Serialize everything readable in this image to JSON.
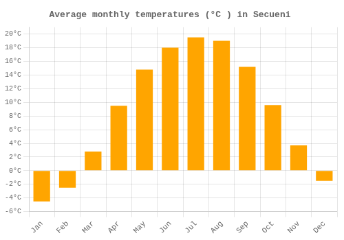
{
  "chart_data": {
    "type": "bar",
    "title": "Average monthly temperatures (°C ) in Secueni",
    "categories": [
      "Jan",
      "Feb",
      "Mar",
      "Apr",
      "May",
      "Jun",
      "Jul",
      "Aug",
      "Sep",
      "Oct",
      "Nov",
      "Dec"
    ],
    "values": [
      -4.5,
      -2.5,
      2.8,
      9.5,
      14.8,
      18.0,
      19.5,
      19.0,
      15.2,
      9.6,
      3.7,
      -1.5
    ],
    "color": "#FFA500",
    "ylim": [
      -6,
      21
    ],
    "yticks": [
      {
        "value": -6,
        "label": "-6°C"
      },
      {
        "value": -4,
        "label": "-4°C"
      },
      {
        "value": -2,
        "label": "-2°C"
      },
      {
        "value": 0,
        "label": "0°C"
      },
      {
        "value": 2,
        "label": "2°C"
      },
      {
        "value": 4,
        "label": "4°C"
      },
      {
        "value": 6,
        "label": "6°C"
      },
      {
        "value": 8,
        "label": "8°C"
      },
      {
        "value": 10,
        "label": "10°C"
      },
      {
        "value": 12,
        "label": "12°C"
      },
      {
        "value": 14,
        "label": "14°C"
      },
      {
        "value": 16,
        "label": "16°C"
      },
      {
        "value": 18,
        "label": "18°C"
      },
      {
        "value": 20,
        "label": "20°C"
      }
    ],
    "grid": true
  }
}
